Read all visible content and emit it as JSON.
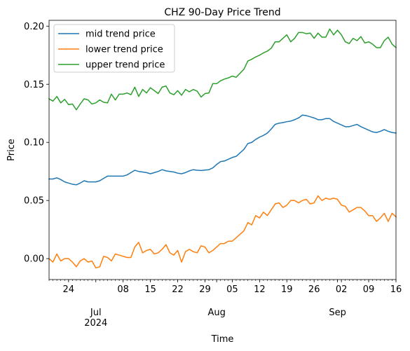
{
  "chart_data": {
    "type": "line",
    "title": "CHZ 90-Day Price Trend",
    "xlabel": "Time",
    "ylabel": "Price",
    "x_start": "2024-06-19",
    "x_end": "2024-09-16",
    "ylim": [
      -0.018,
      0.205
    ],
    "yticks": [
      0.0,
      0.05,
      0.1,
      0.15,
      0.2
    ],
    "ytick_labels": [
      "0.00",
      "0.05",
      "0.10",
      "0.15",
      "0.20"
    ],
    "xticks": [
      {
        "date": "2024-06-24",
        "label": "24"
      },
      {
        "date": "2024-07-01",
        "label": "Jul",
        "label2": "2024"
      },
      {
        "date": "2024-07-08",
        "label": "08"
      },
      {
        "date": "2024-07-15",
        "label": "15"
      },
      {
        "date": "2024-07-22",
        "label": "22"
      },
      {
        "date": "2024-07-29",
        "label": "29"
      },
      {
        "date": "2024-08-01",
        "label": "Aug"
      },
      {
        "date": "2024-08-05",
        "label": "05"
      },
      {
        "date": "2024-08-12",
        "label": "12"
      },
      {
        "date": "2024-08-19",
        "label": "19"
      },
      {
        "date": "2024-08-26",
        "label": "26"
      },
      {
        "date": "2024-09-01",
        "label": "Sep"
      },
      {
        "date": "2024-09-02",
        "label": "02"
      },
      {
        "date": "2024-09-09",
        "label": "09"
      },
      {
        "date": "2024-09-16",
        "label": "16"
      }
    ],
    "legend_position": "top-left",
    "grid": false,
    "series": [
      {
        "name": "mid trend price",
        "color": "#1f77b4",
        "values": [
          0.0685,
          0.0685,
          0.0695,
          0.068,
          0.066,
          0.065,
          0.064,
          0.0635,
          0.065,
          0.067,
          0.066,
          0.066,
          0.066,
          0.067,
          0.069,
          0.071,
          0.071,
          0.071,
          0.071,
          0.071,
          0.072,
          0.074,
          0.076,
          0.075,
          0.0745,
          0.074,
          0.073,
          0.074,
          0.075,
          0.0765,
          0.0755,
          0.075,
          0.0745,
          0.0735,
          0.073,
          0.074,
          0.0755,
          0.0765,
          0.076,
          0.0758,
          0.0762,
          0.0765,
          0.078,
          0.081,
          0.0835,
          0.084,
          0.0855,
          0.087,
          0.088,
          0.091,
          0.094,
          0.099,
          0.1,
          0.1025,
          0.1045,
          0.106,
          0.108,
          0.1115,
          0.1155,
          0.1165,
          0.117,
          0.1178,
          0.1183,
          0.1195,
          0.121,
          0.1235,
          0.123,
          0.122,
          0.121,
          0.1195,
          0.1195,
          0.1205,
          0.1205,
          0.118,
          0.1165,
          0.115,
          0.1135,
          0.1135,
          0.1145,
          0.1155,
          0.1135,
          0.112,
          0.1105,
          0.109,
          0.1085,
          0.1095,
          0.111,
          0.1095,
          0.1085,
          0.108
        ]
      },
      {
        "name": "lower trend price",
        "color": "#ff7f0e",
        "values": [
          0.0,
          -0.003,
          0.004,
          -0.002,
          0.0,
          0.0,
          -0.003,
          -0.007,
          -0.002,
          0.0,
          -0.003,
          -0.002,
          -0.008,
          -0.007,
          0.002,
          0.001,
          -0.002,
          0.004,
          0.003,
          0.002,
          0.001,
          0.001,
          0.01,
          0.014,
          0.005,
          0.007,
          0.008,
          0.004,
          0.005,
          0.008,
          0.012,
          0.005,
          0.003,
          0.007,
          -0.003,
          0.006,
          0.008,
          0.006,
          0.005,
          0.011,
          0.01,
          0.005,
          0.007,
          0.01,
          0.013,
          0.013,
          0.015,
          0.015,
          0.018,
          0.021,
          0.024,
          0.031,
          0.029,
          0.037,
          0.035,
          0.04,
          0.037,
          0.042,
          0.047,
          0.048,
          0.044,
          0.046,
          0.05,
          0.05,
          0.048,
          0.05,
          0.051,
          0.047,
          0.048,
          0.054,
          0.05,
          0.052,
          0.051,
          0.052,
          0.051,
          0.046,
          0.045,
          0.04,
          0.042,
          0.044,
          0.044,
          0.041,
          0.037,
          0.037,
          0.032,
          0.035,
          0.039,
          0.032,
          0.039,
          0.036
        ]
      },
      {
        "name": "upper trend price",
        "color": "#2ca02c",
        "values": [
          0.1375,
          0.1355,
          0.1395,
          0.134,
          0.137,
          0.1325,
          0.133,
          0.128,
          0.133,
          0.1375,
          0.1365,
          0.133,
          0.134,
          0.1365,
          0.1345,
          0.134,
          0.1415,
          0.1365,
          0.1415,
          0.1415,
          0.1425,
          0.141,
          0.1475,
          0.1395,
          0.1455,
          0.1425,
          0.147,
          0.1445,
          0.142,
          0.1475,
          0.1485,
          0.1425,
          0.141,
          0.1445,
          0.1405,
          0.1455,
          0.1435,
          0.1455,
          0.144,
          0.139,
          0.142,
          0.1425,
          0.1505,
          0.1505,
          0.153,
          0.1545,
          0.1555,
          0.157,
          0.156,
          0.1595,
          0.163,
          0.17,
          0.1715,
          0.1735,
          0.175,
          0.177,
          0.1785,
          0.181,
          0.1865,
          0.1865,
          0.1895,
          0.1925,
          0.1865,
          0.1895,
          0.1945,
          0.1945,
          0.1935,
          0.194,
          0.1895,
          0.194,
          0.1905,
          0.1905,
          0.1975,
          0.1925,
          0.1965,
          0.1925,
          0.1865,
          0.185,
          0.1895,
          0.1875,
          0.191,
          0.1855,
          0.1865,
          0.1845,
          0.1815,
          0.1815,
          0.1875,
          0.1905,
          0.1845,
          0.1815
        ]
      }
    ]
  }
}
